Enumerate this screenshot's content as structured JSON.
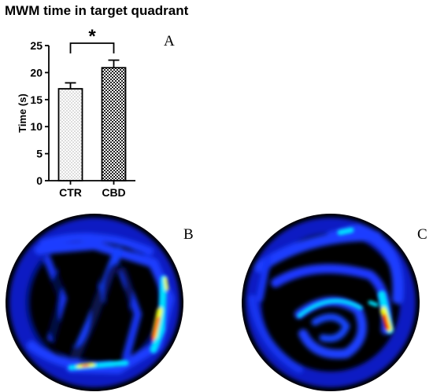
{
  "chart_data": {
    "type": "bar",
    "title": "MWM time in target quadrant",
    "ylabel": "Time (s)",
    "xlabel": "",
    "ylim": [
      0,
      25
    ],
    "yticks": [
      0,
      5,
      10,
      15,
      20,
      25
    ],
    "categories": [
      "CTR",
      "CBD"
    ],
    "values": [
      17.0,
      20.9
    ],
    "errors": [
      1.1,
      1.4
    ],
    "significance": "*"
  },
  "panels": {
    "a": "A",
    "b": "B",
    "c": "C"
  },
  "colors": {
    "heatmap_background": "#000000",
    "heatmap_low": "#0a1cd8",
    "heatmap_mid": "#00e0ff",
    "heatmap_high": "#ff2000",
    "heatmap_yellow": "#f0ff00"
  }
}
